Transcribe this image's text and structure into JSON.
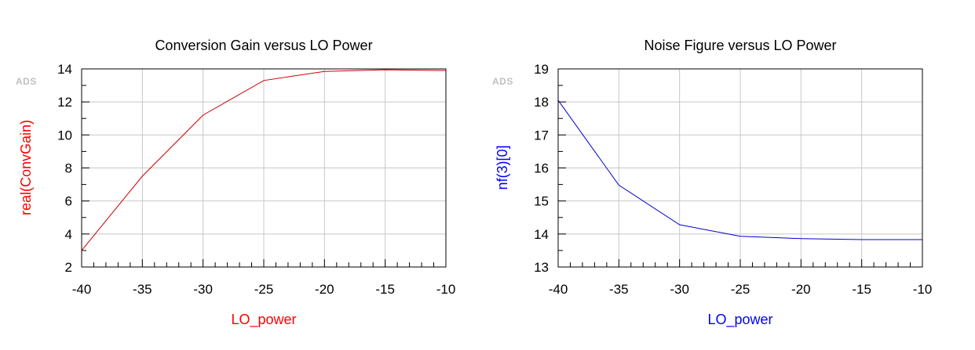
{
  "chart_data": [
    {
      "type": "line",
      "title": "Conversion Gain versus LO Power",
      "xlabel": "LO_power",
      "ylabel": "real(ConvGain)",
      "watermark": "ADS",
      "xlim": [
        -40,
        -10
      ],
      "ylim": [
        2,
        14
      ],
      "xticks": [
        -40,
        -35,
        -30,
        -25,
        -20,
        -15,
        -10
      ],
      "yticks": [
        2,
        4,
        6,
        8,
        10,
        12,
        14
      ],
      "xtick_labels": [
        "-40",
        "-35",
        "-30",
        "-25",
        "-20",
        "-15",
        "-10"
      ],
      "ytick_labels": [
        "2",
        "4",
        "6",
        "8",
        "10",
        "12",
        "14"
      ],
      "grid": true,
      "color": "#cc0000",
      "label_color": "#ff0000",
      "series": [
        {
          "x": [
            -40,
            -35,
            -30,
            -25,
            -20,
            -15,
            -10
          ],
          "y": [
            3.0,
            7.5,
            11.2,
            13.3,
            13.85,
            13.95,
            13.9
          ]
        }
      ]
    },
    {
      "type": "line",
      "title": "Noise Figure versus LO Power",
      "xlabel": "LO_power",
      "ylabel": "nf(3)[0]",
      "watermark": "ADS",
      "xlim": [
        -40,
        -10
      ],
      "ylim": [
        13,
        19
      ],
      "xticks": [
        -40,
        -35,
        -30,
        -25,
        -20,
        -15,
        -10
      ],
      "yticks": [
        13,
        14,
        15,
        16,
        17,
        18,
        19
      ],
      "xtick_labels": [
        "-40",
        "-35",
        "-30",
        "-25",
        "-20",
        "-15",
        "-10"
      ],
      "ytick_labels": [
        "13",
        "14",
        "15",
        "16",
        "17",
        "18",
        "19"
      ],
      "grid": true,
      "color": "#0000cc",
      "label_color": "#0000ff",
      "series": [
        {
          "x": [
            -40,
            -35,
            -30,
            -25,
            -20,
            -15,
            -10
          ],
          "y": [
            18.05,
            15.48,
            14.28,
            13.93,
            13.86,
            13.83,
            13.83
          ]
        }
      ]
    }
  ]
}
